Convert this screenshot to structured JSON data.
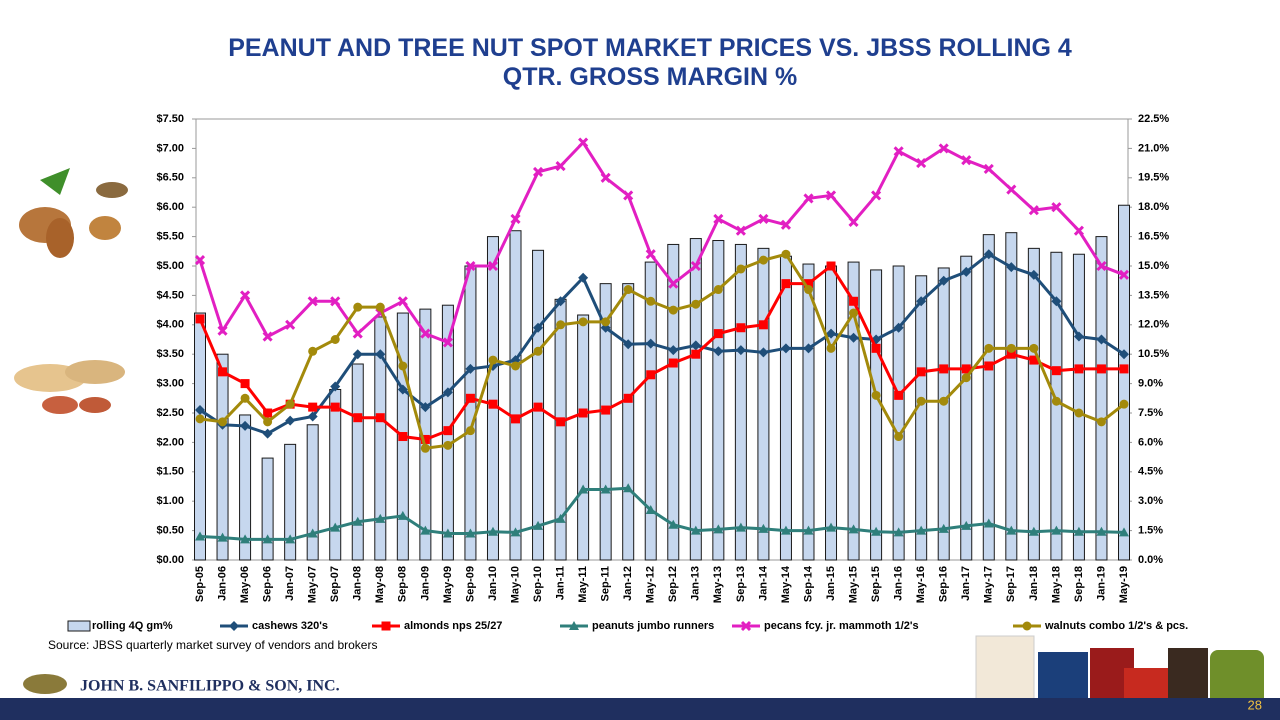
{
  "chart_data": {
    "type": "combo",
    "title": "PEANUT AND TREE NUT SPOT MARKET PRICES VS. JBSS ROLLING 4 QTR. GROSS MARGIN %",
    "categories": [
      "Sep-05",
      "Jan-06",
      "May-06",
      "Sep-06",
      "Jan-07",
      "May-07",
      "Sep-07",
      "Jan-08",
      "May-08",
      "Sep-08",
      "Jan-09",
      "May-09",
      "Sep-09",
      "Jan-10",
      "May-10",
      "Sep-10",
      "Jan-11",
      "May-11",
      "Sep-11",
      "Jan-12",
      "May-12",
      "Sep-12",
      "Jan-13",
      "May-13",
      "Sep-13",
      "Jan-14",
      "May-14",
      "Sep-14",
      "Jan-15",
      "May-15",
      "Sep-15",
      "Jan-16",
      "May-16",
      "Sep-16",
      "Jan-17",
      "May-17",
      "Sep-17",
      "Jan-18",
      "May-18",
      "Sep-18",
      "Jan-19",
      "May-19"
    ],
    "series": [
      {
        "name": "rolling 4Q gm%",
        "type": "bar",
        "axis": "y2",
        "color": "#c6d7ee",
        "values": [
          12.6,
          10.5,
          7.4,
          5.2,
          5.9,
          6.9,
          8.7,
          10.0,
          12.4,
          12.6,
          12.8,
          13.0,
          15.0,
          16.5,
          16.8,
          15.8,
          13.3,
          12.5,
          14.1,
          14.1,
          15.2,
          16.1,
          16.4,
          16.3,
          16.1,
          15.9,
          15.5,
          15.1,
          15.0,
          15.2,
          14.8,
          15.0,
          14.5,
          14.9,
          15.5,
          16.6,
          16.7,
          15.9,
          15.7,
          15.6,
          16.5,
          18.1
        ]
      },
      {
        "name": "cashews 320's",
        "type": "line",
        "marker": "diamond",
        "color": "#1f4e79",
        "values": [
          2.55,
          2.3,
          2.28,
          2.15,
          2.37,
          2.44,
          2.95,
          3.5,
          3.5,
          2.9,
          2.6,
          2.85,
          3.25,
          3.3,
          3.4,
          3.95,
          4.4,
          4.8,
          3.95,
          3.67,
          3.68,
          3.57,
          3.65,
          3.55,
          3.57,
          3.53,
          3.6,
          3.6,
          3.85,
          3.78,
          3.75,
          3.95,
          4.4,
          4.75,
          4.9,
          5.2,
          4.98,
          4.85,
          4.4,
          3.8,
          3.75,
          3.5
        ]
      },
      {
        "name": "almonds nps 25/27",
        "type": "line",
        "marker": "square",
        "color": "#ff0000",
        "values": [
          4.1,
          3.2,
          3.0,
          2.5,
          2.65,
          2.6,
          2.6,
          2.42,
          2.42,
          2.1,
          2.05,
          2.2,
          2.75,
          2.65,
          2.4,
          2.6,
          2.35,
          2.5,
          2.55,
          2.75,
          3.15,
          3.35,
          3.5,
          3.85,
          3.95,
          4.0,
          4.7,
          4.7,
          5.0,
          4.4,
          3.6,
          2.8,
          3.2,
          3.25,
          3.25,
          3.3,
          3.5,
          3.4,
          3.22,
          3.25,
          3.25,
          3.25
        ]
      },
      {
        "name": "peanuts jumbo runners",
        "type": "line",
        "marker": "triangle",
        "color": "#2f7f7b",
        "values": [
          0.4,
          0.38,
          0.35,
          0.35,
          0.35,
          0.45,
          0.55,
          0.65,
          0.7,
          0.75,
          0.5,
          0.45,
          0.45,
          0.48,
          0.47,
          0.58,
          0.7,
          1.2,
          1.2,
          1.22,
          0.85,
          0.6,
          0.5,
          0.52,
          0.55,
          0.53,
          0.5,
          0.5,
          0.55,
          0.52,
          0.48,
          0.47,
          0.5,
          0.53,
          0.58,
          0.62,
          0.5,
          0.48,
          0.5,
          0.48,
          0.48,
          0.47
        ]
      },
      {
        "name": "pecans fcy. jr. mammoth 1/2's",
        "type": "line",
        "marker": "x",
        "color": "#e21fc2",
        "values": [
          5.1,
          3.9,
          4.5,
          3.8,
          4.0,
          4.4,
          4.4,
          3.85,
          4.2,
          4.4,
          3.85,
          3.7,
          5.0,
          5.0,
          5.8,
          6.6,
          6.7,
          7.1,
          6.5,
          6.2,
          5.2,
          4.7,
          5.0,
          5.8,
          5.6,
          5.8,
          5.7,
          6.15,
          6.2,
          5.75,
          6.2,
          6.95,
          6.75,
          7.0,
          6.8,
          6.65,
          6.3,
          5.95,
          6.0,
          5.6,
          5.0,
          4.85
        ]
      },
      {
        "name": "walnuts combo 1/2's & pcs.",
        "type": "line",
        "marker": "circle",
        "color": "#a38a0b",
        "values": [
          2.4,
          2.35,
          2.75,
          2.35,
          2.65,
          3.55,
          3.75,
          4.3,
          4.3,
          3.3,
          1.9,
          1.95,
          2.2,
          3.4,
          3.3,
          3.55,
          4.0,
          4.05,
          4.05,
          4.6,
          4.4,
          4.25,
          4.35,
          4.6,
          4.95,
          5.1,
          5.2,
          4.6,
          3.6,
          4.2,
          2.8,
          2.1,
          2.7,
          2.7,
          3.1,
          3.6,
          3.6,
          3.6,
          2.7,
          2.5,
          2.35,
          2.65
        ]
      }
    ],
    "ylim": [
      0,
      7.5
    ],
    "yticks": [
      {
        "value": 0,
        "label": "$0.00"
      },
      {
        "value": 0.5,
        "label": "$0.50"
      },
      {
        "value": 1,
        "label": "$1.00"
      },
      {
        "value": 1.5,
        "label": "$1.50"
      },
      {
        "value": 2,
        "label": "$2.00"
      },
      {
        "value": 2.5,
        "label": "$2.50"
      },
      {
        "value": 3,
        "label": "$3.00"
      },
      {
        "value": 3.5,
        "label": "$3.50"
      },
      {
        "value": 4,
        "label": "$4.00"
      },
      {
        "value": 4.5,
        "label": "$4.50"
      },
      {
        "value": 5,
        "label": "$5.00"
      },
      {
        "value": 5.5,
        "label": "$5.50"
      },
      {
        "value": 6,
        "label": "$6.00"
      },
      {
        "value": 6.5,
        "label": "$6.50"
      },
      {
        "value": 7,
        "label": "$7.00"
      },
      {
        "value": 7.5,
        "label": "$7.50"
      }
    ],
    "y2lim": [
      0,
      22.5
    ],
    "y2ticks": [
      {
        "value": 0,
        "label": "0.0%"
      },
      {
        "value": 1.5,
        "label": "1.5%"
      },
      {
        "value": 3,
        "label": "3.0%"
      },
      {
        "value": 4.5,
        "label": "4.5%"
      },
      {
        "value": 6,
        "label": "6.0%"
      },
      {
        "value": 7.5,
        "label": "7.5%"
      },
      {
        "value": 9,
        "label": "9.0%"
      },
      {
        "value": 10.5,
        "label": "10.5%"
      },
      {
        "value": 12,
        "label": "12.0%"
      },
      {
        "value": 13.5,
        "label": "13.5%"
      },
      {
        "value": 15,
        "label": "15.0%"
      },
      {
        "value": 16.5,
        "label": "16.5%"
      },
      {
        "value": 18,
        "label": "18.0%"
      },
      {
        "value": 19.5,
        "label": "19.5%"
      },
      {
        "value": 21,
        "label": "21.0%"
      },
      {
        "value": 22.5,
        "label": "22.5%"
      }
    ],
    "grid": false,
    "legend": "bottom"
  },
  "footer": {
    "source": "Source:  JBSS quarterly market survey of vendors and brokers",
    "company": "JOHN B. SANFILIPPO & SON, INC.",
    "page_number": "28"
  }
}
